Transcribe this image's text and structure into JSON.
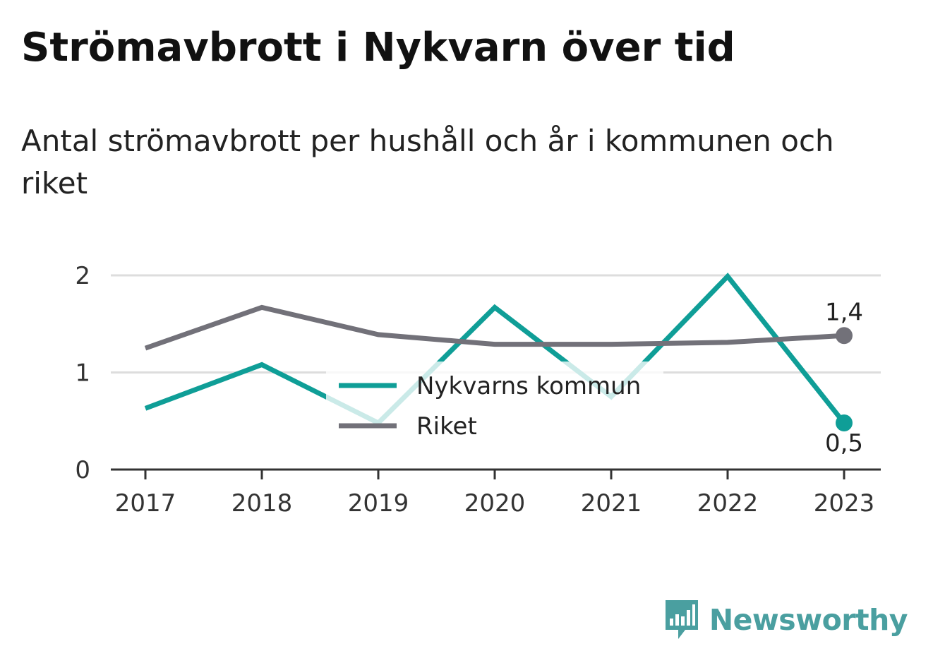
{
  "title": "Strömavbrott i Nykvarn över tid",
  "subtitle": "Antal strömavbrott per hushåll och år i kommunen och riket",
  "brand": "Newsworthy",
  "colors": {
    "kommun": "#0f9e97",
    "riket": "#727179",
    "grid": "#dddddd",
    "axis": "#333333"
  },
  "chart_data": {
    "type": "line",
    "x": [
      "2017",
      "2018",
      "2019",
      "2020",
      "2021",
      "2022",
      "2023"
    ],
    "ylim": [
      0,
      2
    ],
    "yticks": [
      "0",
      "1",
      "2"
    ],
    "grid": true,
    "legend_position": "center",
    "series": [
      {
        "name": "Nykvarns kommun",
        "key": "kommun",
        "values": [
          0.63,
          1.08,
          0.48,
          1.67,
          0.75,
          1.99,
          0.48
        ],
        "end_label": "0,5"
      },
      {
        "name": "Riket",
        "key": "riket",
        "values": [
          1.25,
          1.67,
          1.39,
          1.29,
          1.29,
          1.31,
          1.38
        ],
        "end_label": "1,4"
      }
    ]
  }
}
